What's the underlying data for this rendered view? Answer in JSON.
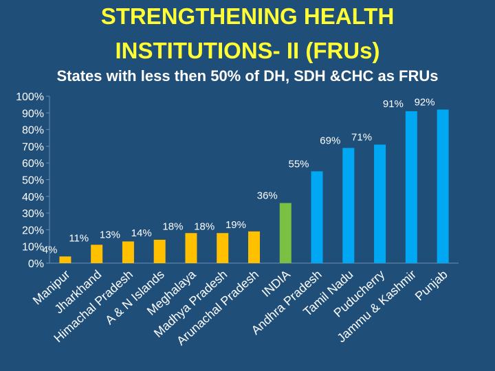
{
  "slide": {
    "title_line1": "STRENGTHENING HEALTH",
    "title_line2": "INSTITUTIONS- II (FRUs)"
  },
  "chart_data": {
    "type": "bar",
    "title": "States with less then 50% of DH, SDH &CHC as FRUs",
    "xlabel": "",
    "ylabel": "",
    "ylim": [
      0,
      100
    ],
    "y_ticks": [
      "0%",
      "10%",
      "20%",
      "30%",
      "40%",
      "50%",
      "60%",
      "70%",
      "80%",
      "90%",
      "100%"
    ],
    "categories": [
      "Manipur",
      "Jharkhand",
      "Himachal Pradesh",
      "A & N Islands",
      "Meghalaya",
      "Madhya Pradesh",
      "Arunachal Pradesh",
      "INDIA",
      "Andhra Pradesh",
      "Tamil Nadu",
      "Puducherry",
      "Jammu & Kashmir",
      "Punjab"
    ],
    "values": [
      4,
      11,
      13,
      14,
      18,
      18,
      19,
      36,
      55,
      69,
      71,
      91,
      92
    ],
    "value_labels": [
      "4%",
      "11%",
      "13%",
      "14%",
      "18%",
      "18%",
      "19%",
      "36%",
      "55%",
      "69%",
      "71%",
      "91%",
      "92%"
    ],
    "bar_colors": [
      "#ffc000",
      "#ffc000",
      "#ffc000",
      "#ffc000",
      "#ffc000",
      "#ffc000",
      "#ffc000",
      "#7ac143",
      "#00a8f3",
      "#00a8f3",
      "#00a8f3",
      "#00a8f3",
      "#00a8f3"
    ],
    "grid": false,
    "legend": "none"
  },
  "colors": {
    "background": "#1f4e79",
    "title": "#ffff33",
    "text": "#ffffff",
    "axis": "#6d8fb3"
  }
}
